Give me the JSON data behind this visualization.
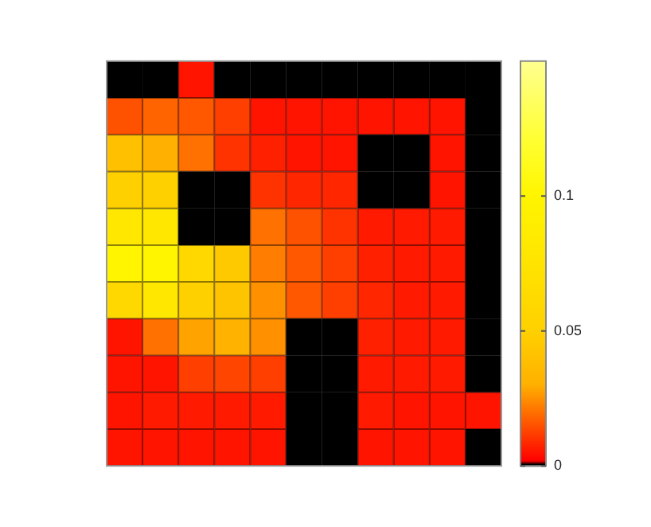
{
  "chart_data": {
    "type": "heatmap",
    "categories": [
      null,
      null,
      null,
      null,
      null,
      null,
      null,
      null,
      null,
      null,
      null
    ],
    "y_categories": [
      null,
      null,
      null,
      null,
      null,
      null,
      null,
      null,
      null,
      null,
      null
    ],
    "cells": [
      [
        0,
        0,
        0.005,
        0,
        0,
        0,
        0,
        0,
        0,
        0,
        0
      ],
      [
        0.015,
        0.018,
        0.016,
        0.012,
        0.005,
        0.005,
        0.005,
        0.005,
        0.005,
        0.005,
        0
      ],
      [
        0.04,
        0.03,
        0.02,
        0.01,
        0.007,
        0.005,
        0.005,
        0,
        0,
        0.005,
        0
      ],
      [
        0.05,
        0.05,
        0,
        0,
        0.01,
        0.008,
        0.008,
        0,
        0,
        0.005,
        0
      ],
      [
        0.08,
        0.08,
        0,
        0,
        0.02,
        0.015,
        0.01,
        0.006,
        0.006,
        0.006,
        0
      ],
      [
        0.1,
        0.1,
        0.06,
        0.045,
        0.022,
        0.016,
        0.012,
        0.007,
        0.006,
        0.006,
        0
      ],
      [
        0.06,
        0.08,
        0.05,
        0.042,
        0.025,
        0.016,
        0.012,
        0.008,
        0.006,
        0.006,
        0
      ],
      [
        0.005,
        0.02,
        0.028,
        0.032,
        0.025,
        0,
        0,
        0.007,
        0.006,
        0.006,
        0
      ],
      [
        0.005,
        0.005,
        0.012,
        0.013,
        0.012,
        0,
        0,
        0.006,
        0.006,
        0.006,
        0
      ],
      [
        0.005,
        0.006,
        0.006,
        0.006,
        0.006,
        0,
        0,
        0.006,
        0.005,
        0.005,
        0.005
      ],
      [
        0.005,
        0.005,
        0.005,
        0.005,
        0.005,
        0,
        0,
        0.005,
        0.005,
        0.005,
        0
      ]
    ],
    "clim": [
      0,
      0.15
    ],
    "cticks": [
      0,
      0.05,
      0.1
    ],
    "tick_labels": false
  }
}
